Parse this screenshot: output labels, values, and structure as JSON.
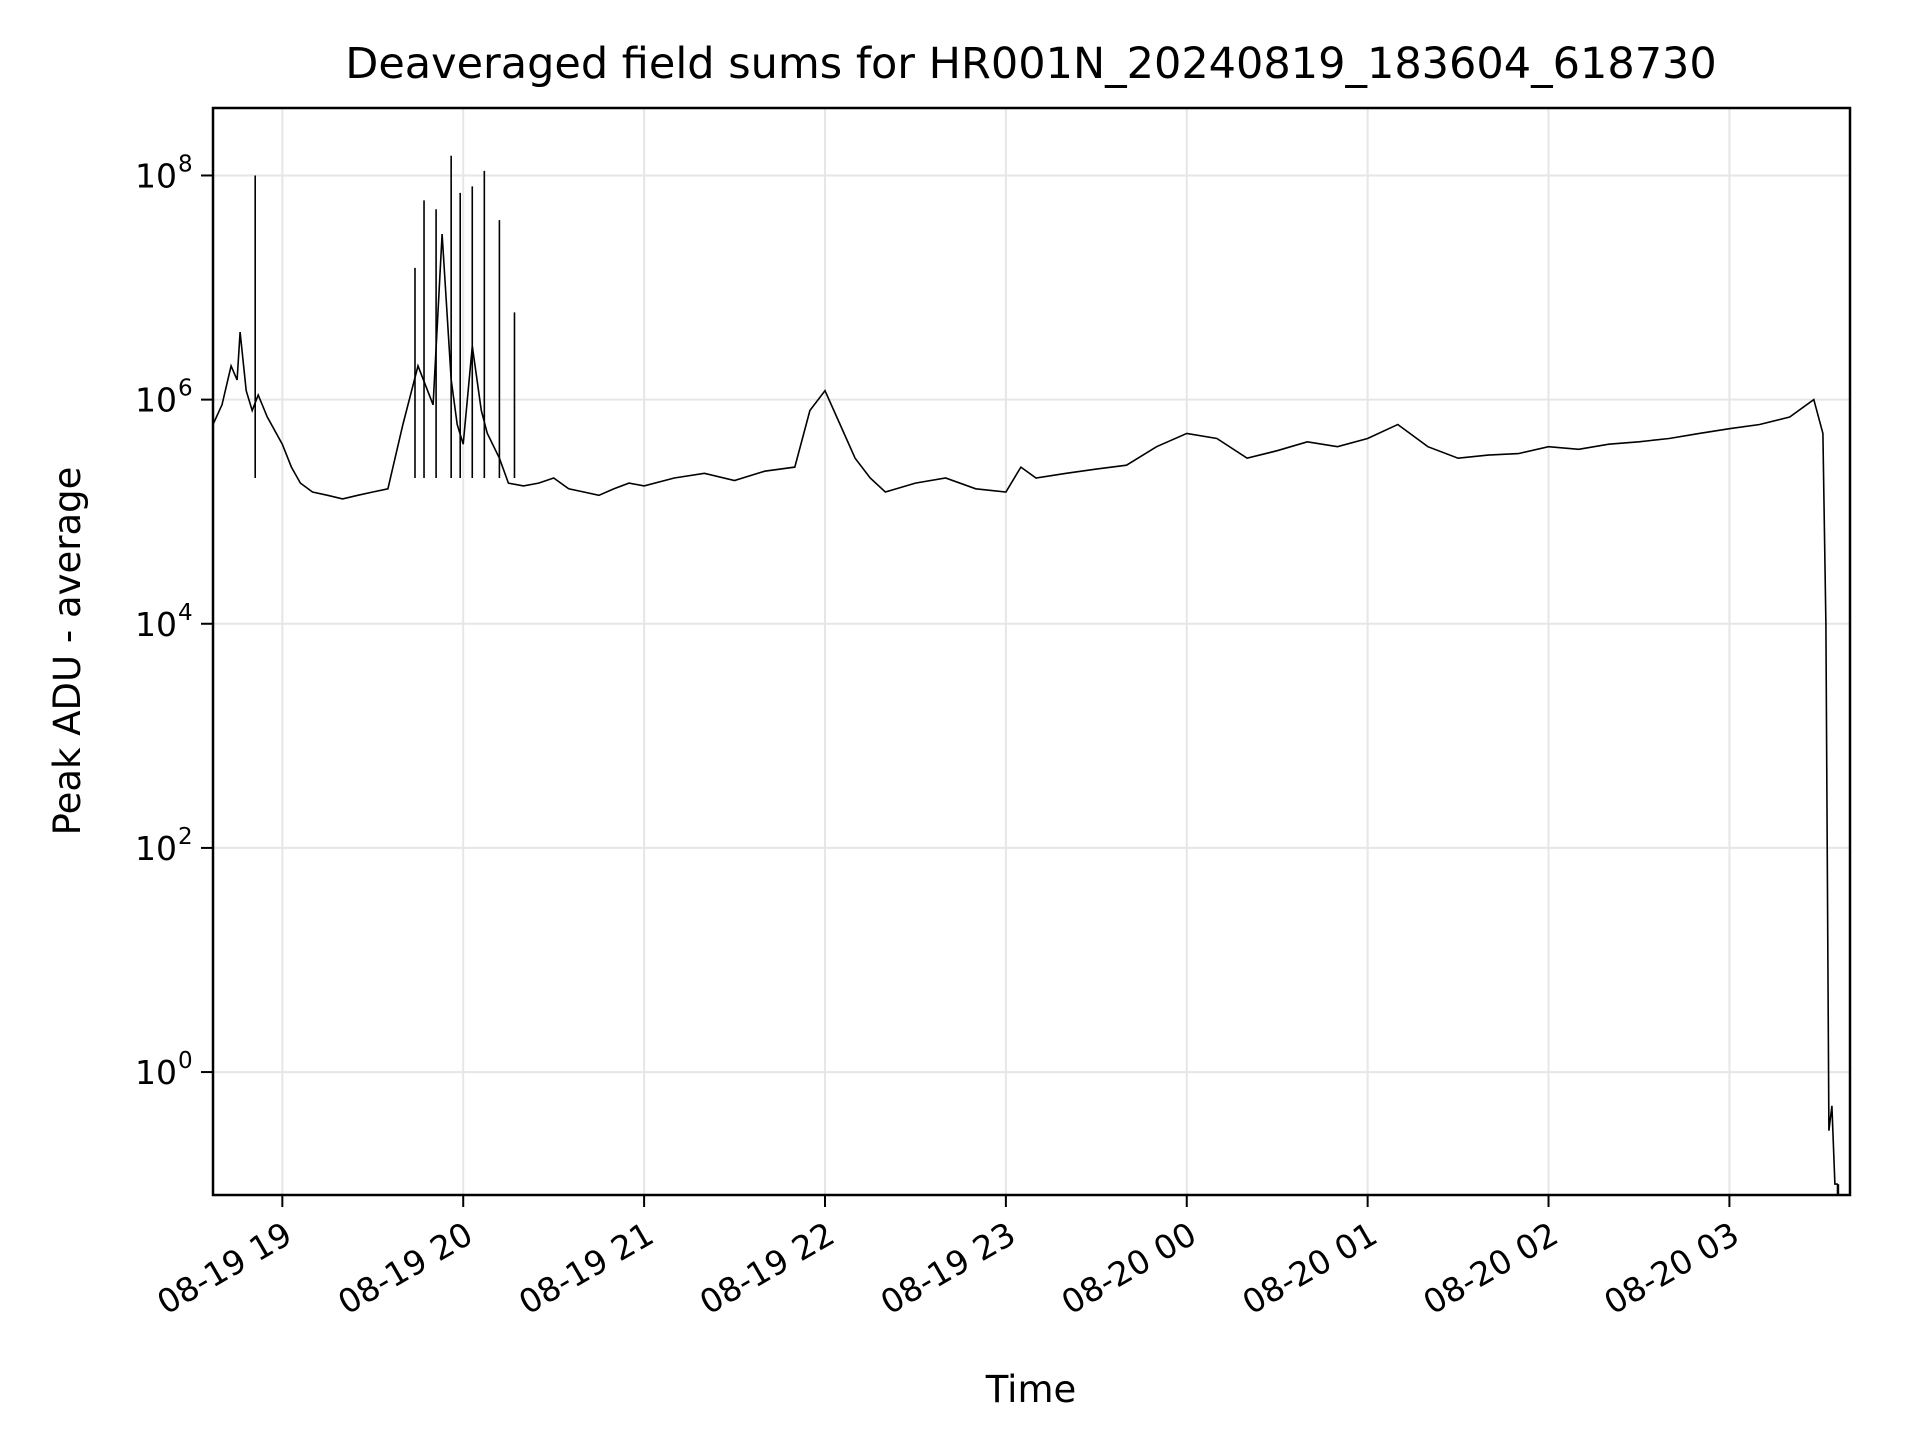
{
  "chart_data": {
    "type": "line",
    "title": "Deaveraged field sums for HR001N_20240819_183604_618730",
    "xlabel": "Time",
    "ylabel": "Peak ADU - average",
    "y_scale": "log",
    "ylim": [
      0.08,
      400000000
    ],
    "xlim": [
      "2024-08-19 18:37",
      "2024-08-20 03:40"
    ],
    "grid": true,
    "line_color": "#000000",
    "grid_color": "#e6e6e6",
    "x_ticks": [
      {
        "label": "08-19 19",
        "value": "2024-08-19 19:00"
      },
      {
        "label": "08-19 20",
        "value": "2024-08-19 20:00"
      },
      {
        "label": "08-19 21",
        "value": "2024-08-19 21:00"
      },
      {
        "label": "08-19 22",
        "value": "2024-08-19 22:00"
      },
      {
        "label": "08-19 23",
        "value": "2024-08-19 23:00"
      },
      {
        "label": "08-20 00",
        "value": "2024-08-20 00:00"
      },
      {
        "label": "08-20 01",
        "value": "2024-08-20 01:00"
      },
      {
        "label": "08-20 02",
        "value": "2024-08-20 02:00"
      },
      {
        "label": "08-20 03",
        "value": "2024-08-20 03:00"
      }
    ],
    "y_ticks": [
      {
        "base": "10",
        "exp": "0",
        "value": 1
      },
      {
        "base": "10",
        "exp": "2",
        "value": 100
      },
      {
        "base": "10",
        "exp": "4",
        "value": 10000
      },
      {
        "base": "10",
        "exp": "6",
        "value": 1000000
      },
      {
        "base": "10",
        "exp": "8",
        "value": 100000000
      }
    ],
    "series": [
      {
        "x": [
          "2024-08-19 18:37",
          "2024-08-19 18:40",
          "2024-08-19 18:43",
          "2024-08-19 18:45",
          "2024-08-19 18:46",
          "2024-08-19 18:48",
          "2024-08-19 18:50",
          "2024-08-19 18:52",
          "2024-08-19 18:55",
          "2024-08-19 19:00",
          "2024-08-19 19:03",
          "2024-08-19 19:06",
          "2024-08-19 19:10",
          "2024-08-19 19:15",
          "2024-08-19 19:20",
          "2024-08-19 19:25",
          "2024-08-19 19:30",
          "2024-08-19 19:35",
          "2024-08-19 19:40",
          "2024-08-19 19:45",
          "2024-08-19 19:50",
          "2024-08-19 19:53",
          "2024-08-19 19:56",
          "2024-08-19 19:58",
          "2024-08-19 20:00",
          "2024-08-19 20:03",
          "2024-08-19 20:06",
          "2024-08-19 20:08",
          "2024-08-19 20:12",
          "2024-08-19 20:15",
          "2024-08-19 20:20",
          "2024-08-19 20:25",
          "2024-08-19 20:30",
          "2024-08-19 20:35",
          "2024-08-19 20:40",
          "2024-08-19 20:45",
          "2024-08-19 20:50",
          "2024-08-19 20:55",
          "2024-08-19 21:00",
          "2024-08-19 21:10",
          "2024-08-19 21:20",
          "2024-08-19 21:30",
          "2024-08-19 21:40",
          "2024-08-19 21:50",
          "2024-08-19 21:55",
          "2024-08-19 22:00",
          "2024-08-19 22:05",
          "2024-08-19 22:10",
          "2024-08-19 22:15",
          "2024-08-19 22:20",
          "2024-08-19 22:30",
          "2024-08-19 22:40",
          "2024-08-19 22:50",
          "2024-08-19 23:00",
          "2024-08-19 23:05",
          "2024-08-19 23:10",
          "2024-08-19 23:20",
          "2024-08-19 23:30",
          "2024-08-19 23:40",
          "2024-08-19 23:50",
          "2024-08-20 00:00",
          "2024-08-20 00:10",
          "2024-08-20 00:20",
          "2024-08-20 00:30",
          "2024-08-20 00:40",
          "2024-08-20 00:50",
          "2024-08-20 01:00",
          "2024-08-20 01:10",
          "2024-08-20 01:20",
          "2024-08-20 01:30",
          "2024-08-20 01:40",
          "2024-08-20 01:50",
          "2024-08-20 02:00",
          "2024-08-20 02:10",
          "2024-08-20 02:20",
          "2024-08-20 02:30",
          "2024-08-20 02:40",
          "2024-08-20 02:50",
          "2024-08-20 03:00",
          "2024-08-20 03:10",
          "2024-08-20 03:20",
          "2024-08-20 03:28",
          "2024-08-20 03:31",
          "2024-08-20 03:32",
          "2024-08-20 03:33",
          "2024-08-20 03:34",
          "2024-08-20 03:35",
          "2024-08-20 03:36"
        ],
        "values": [
          600000,
          900000,
          2000000,
          1500000,
          4000000,
          1200000,
          800000,
          1100000,
          700000,
          400000,
          250000,
          180000,
          150000,
          140000,
          130000,
          140000,
          150000,
          160000,
          600000,
          2000000,
          900000,
          30000000,
          1500000,
          600000,
          400000,
          3000000,
          800000,
          500000,
          300000,
          180000,
          170000,
          180000,
          200000,
          160000,
          150000,
          140000,
          160000,
          180000,
          170000,
          200000,
          220000,
          190000,
          230000,
          250000,
          800000,
          1200000,
          600000,
          300000,
          200000,
          150000,
          180000,
          200000,
          160000,
          150000,
          250000,
          200000,
          220000,
          240000,
          260000,
          380000,
          500000,
          450000,
          300000,
          350000,
          420000,
          380000,
          450000,
          600000,
          380000,
          300000,
          320000,
          330000,
          380000,
          360000,
          400000,
          420000,
          450000,
          500000,
          550000,
          600000,
          700000,
          1000000,
          500000,
          10000,
          0.3,
          0.5,
          0.1,
          0.1
        ]
      }
    ],
    "spikes": [
      {
        "x": "2024-08-19 18:51",
        "value": 100000000
      },
      {
        "x": "2024-08-19 19:44",
        "value": 15000000
      },
      {
        "x": "2024-08-19 19:47",
        "value": 60000000
      },
      {
        "x": "2024-08-19 19:51",
        "value": 50000000
      },
      {
        "x": "2024-08-19 19:56",
        "value": 150000000
      },
      {
        "x": "2024-08-19 19:59",
        "value": 70000000
      },
      {
        "x": "2024-08-19 20:03",
        "value": 80000000
      },
      {
        "x": "2024-08-19 20:07",
        "value": 110000000
      },
      {
        "x": "2024-08-19 20:12",
        "value": 40000000
      },
      {
        "x": "2024-08-19 20:17",
        "value": 6000000
      }
    ]
  }
}
